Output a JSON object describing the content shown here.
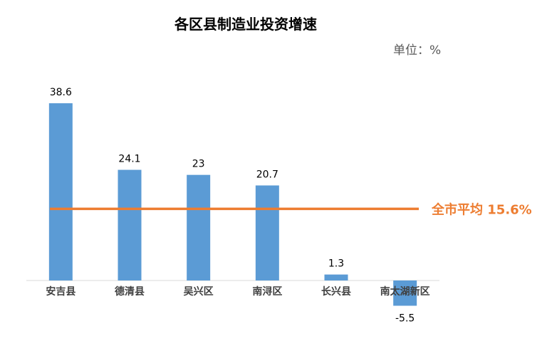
{
  "chart_data": {
    "type": "bar",
    "title": "各区县制造业投资增速",
    "unit": "单位：%",
    "categories": [
      "安吉县",
      "德清县",
      "吴兴区",
      "南浔区",
      "长兴县",
      "南太湖新区"
    ],
    "values": [
      38.6,
      24.1,
      23,
      20.7,
      1.3,
      -5.5
    ],
    "value_labels": [
      "38.6",
      "24.1",
      "23",
      "20.7",
      "1.3",
      "-5.5"
    ],
    "reference_line": {
      "value": 15.6,
      "label": "全市平均 15.6%"
    },
    "xlabel": "",
    "ylabel": "",
    "ylim": [
      -5.5,
      38.6
    ],
    "grid": false,
    "legend": "none",
    "colors": {
      "bar": "#5B9BD5",
      "reference": "#ED7D31",
      "axis": "#D9D9D9"
    }
  }
}
